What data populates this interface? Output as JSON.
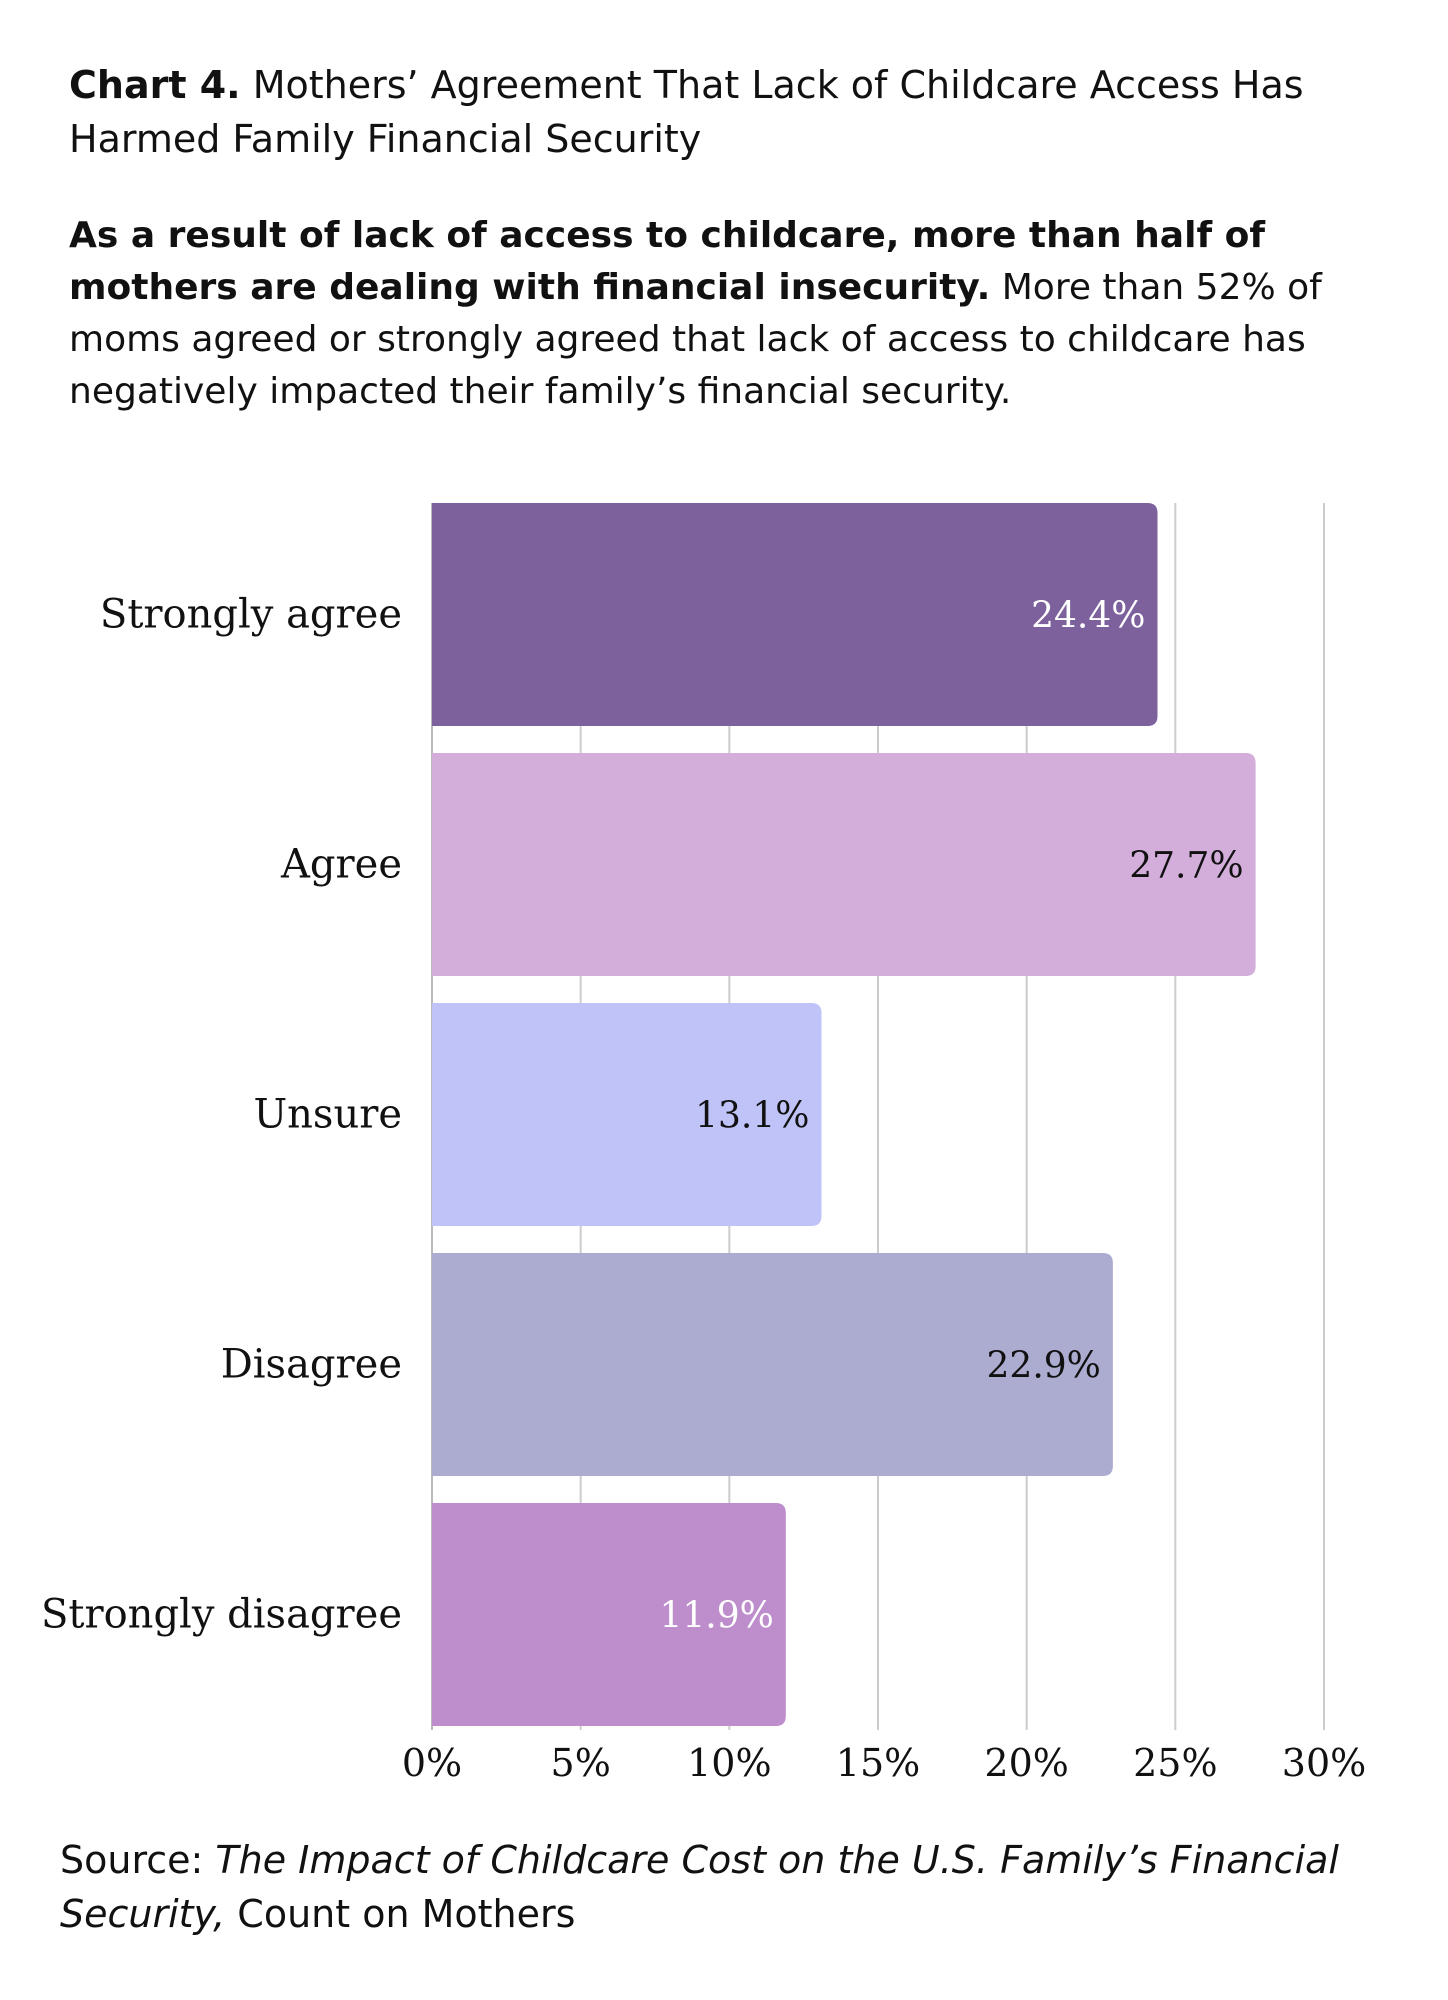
{
  "header": {
    "title_bold": "Chart 4.",
    "title_rest": "Mothers’ Agreement That Lack of Childcare Access Has Harmed Family Financial Security",
    "subtitle_bold": "As a result of lack of access to childcare, more than half of mothers are dealing with financial insecurity.",
    "subtitle_rest": "More than 52% of moms agreed or strongly agreed that lack of access to childcare has negatively impacted their family’s financial security."
  },
  "footer": {
    "source_prefix": "Source:",
    "source_title": "The Impact of Childcare Cost on the U.S. Family’s Financial Security,",
    "source_org": "Count on Mothers"
  },
  "chart_data": {
    "type": "bar",
    "orientation": "horizontal",
    "title": "Mothers’ Agreement That Lack of Childcare Access Has Harmed Family Financial Security",
    "xlabel": "",
    "ylabel": "",
    "xlim": [
      0,
      30
    ],
    "grid": true,
    "categories": [
      "Strongly agree",
      "Agree",
      "Unsure",
      "Disagree",
      "Strongly disagree"
    ],
    "values": [
      24.4,
      27.7,
      13.1,
      22.9,
      11.9
    ],
    "data_labels": [
      "24.4%",
      "27.7%",
      "13.1%",
      "22.9%",
      "11.9%"
    ],
    "ticks": [
      0,
      5,
      10,
      15,
      20,
      25,
      30
    ],
    "tick_labels": [
      "0%",
      "5%",
      "10%",
      "15%",
      "20%",
      "25%",
      "30%"
    ],
    "bar_colors": [
      "#7d619c",
      "#d3aedb",
      "#c0c3f8",
      "#acacd1",
      "#be8ecc"
    ],
    "label_colors": [
      "#ffffff",
      "#111111",
      "#111111",
      "#111111",
      "#ffffff"
    ],
    "grid_color": "#cccccc"
  }
}
